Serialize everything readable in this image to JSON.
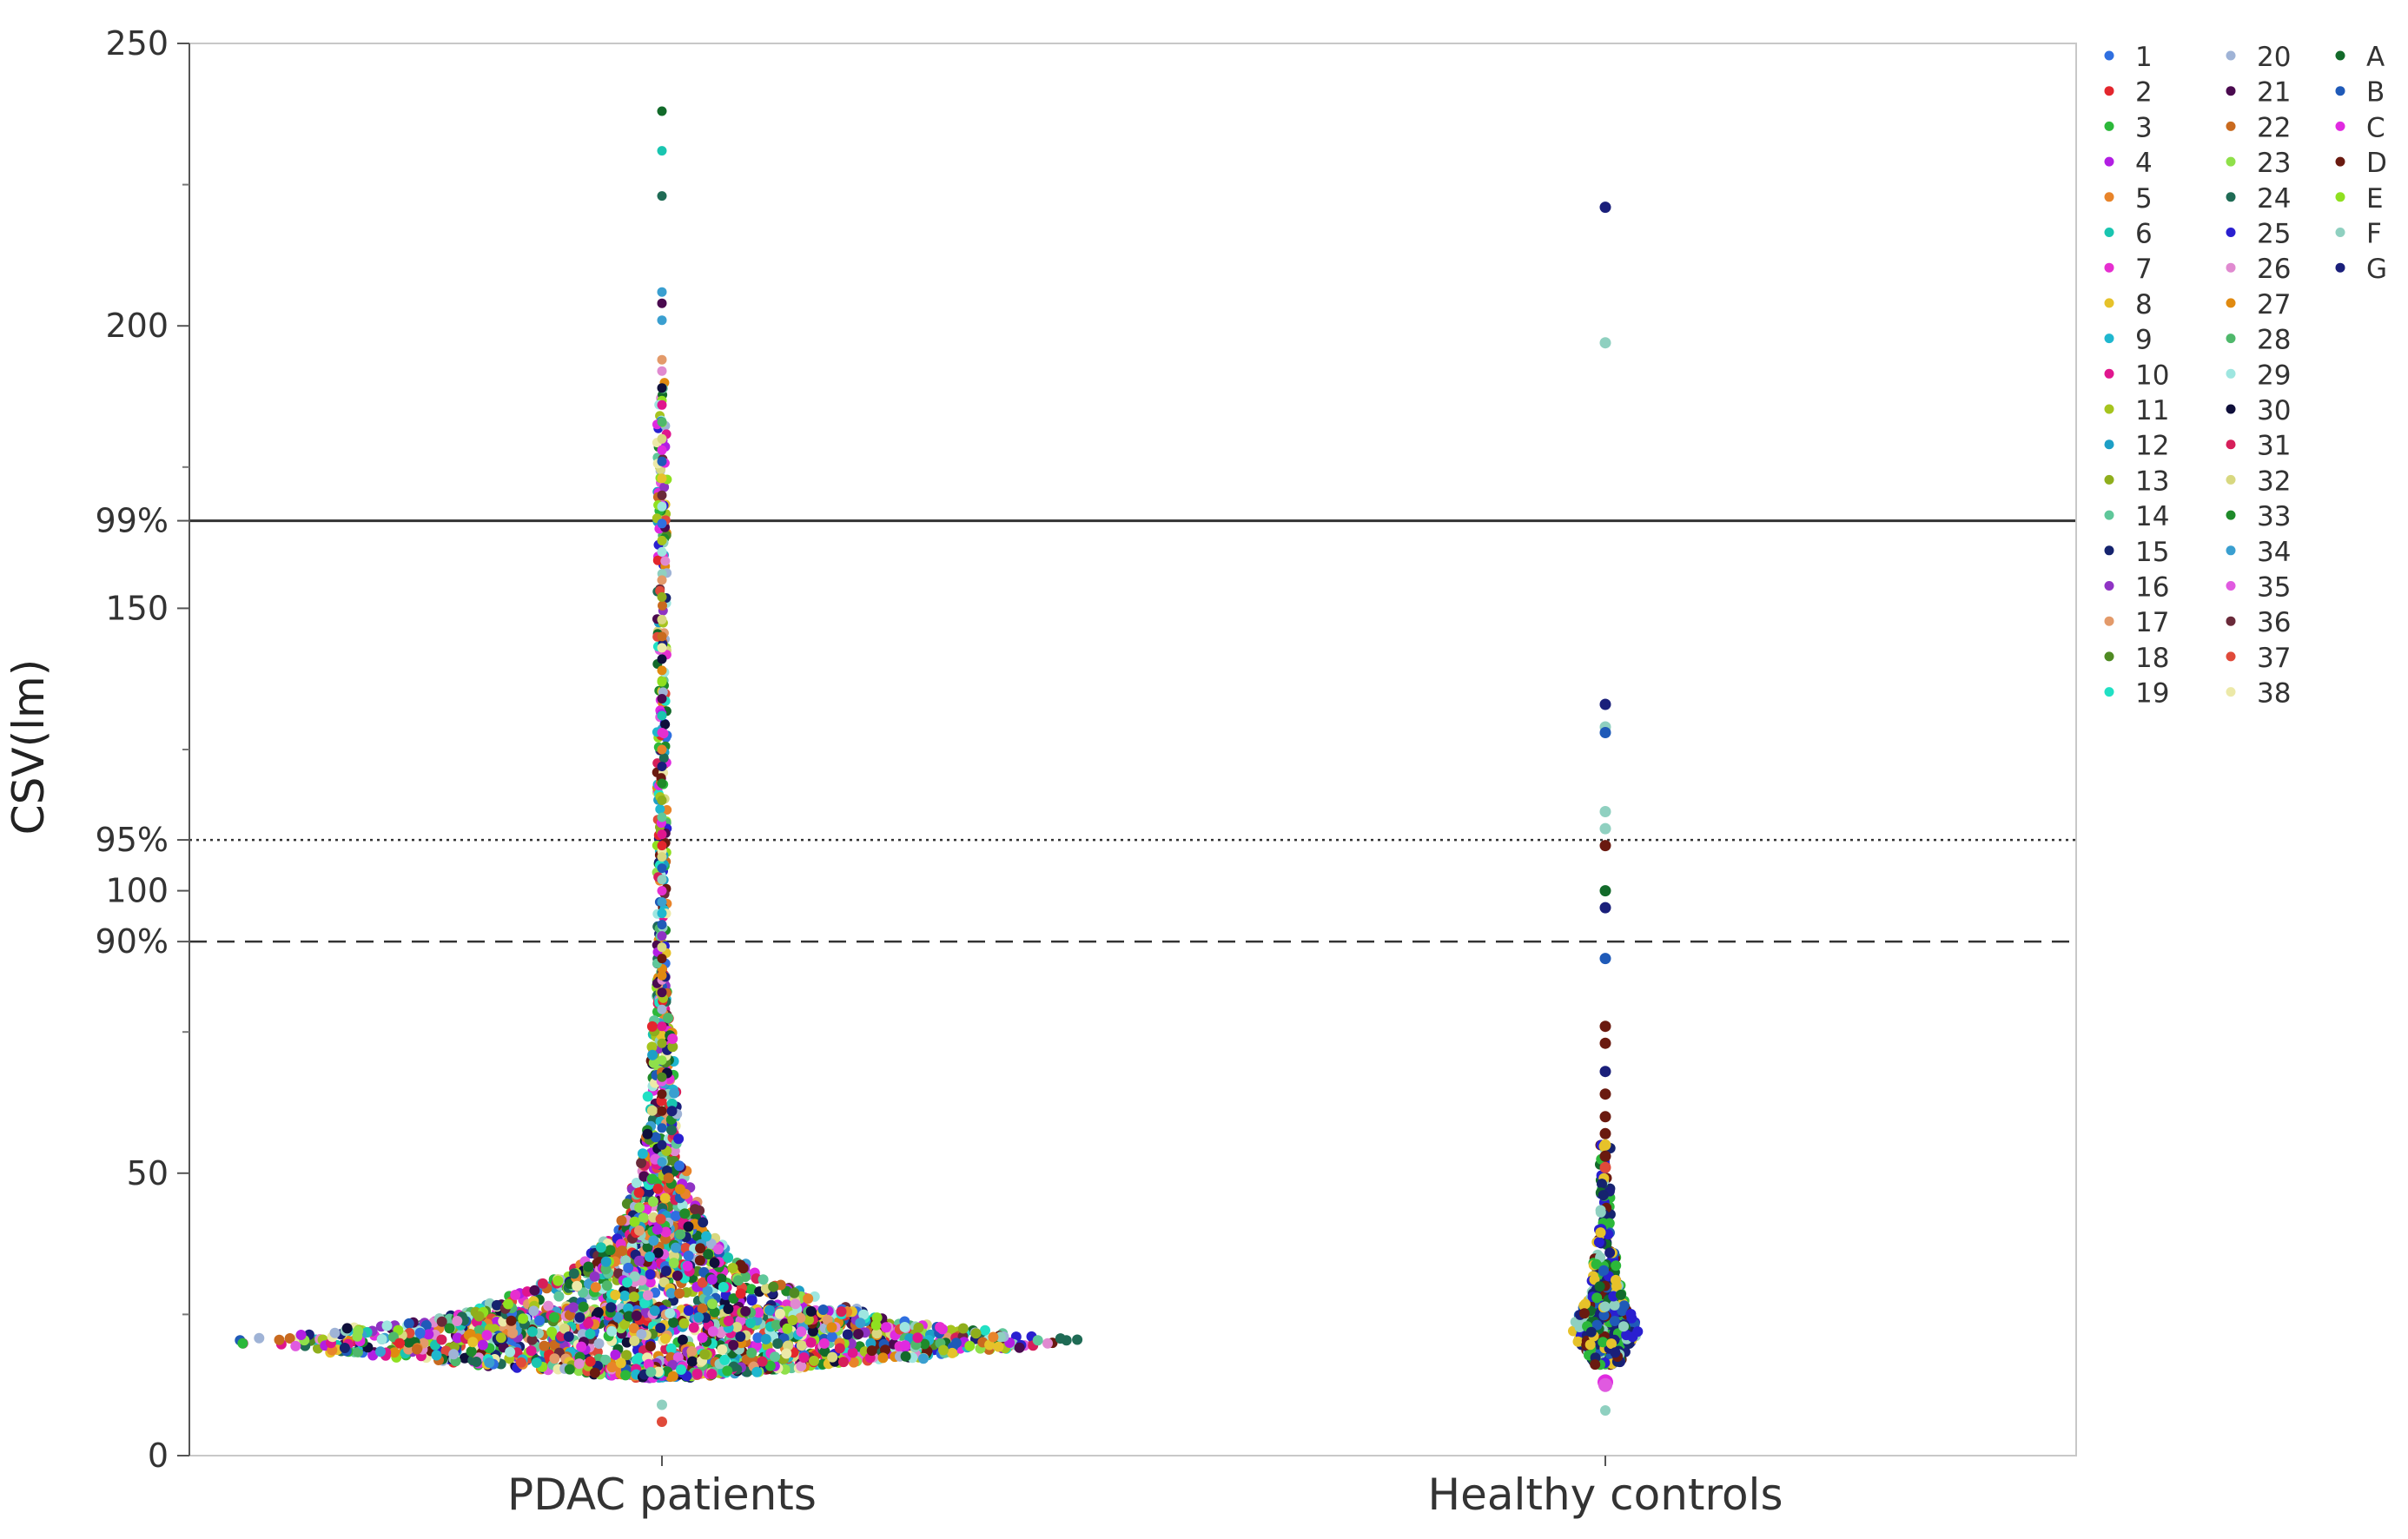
{
  "chart_data": {
    "type": "scatter",
    "title": "",
    "ylabel": "CSV(lm)",
    "xlabel": "",
    "categories": [
      "PDAC patients",
      "Healthy controls"
    ],
    "ylim": [
      0,
      250
    ],
    "yticks": [
      0,
      50,
      100,
      150,
      200,
      250
    ],
    "grid": false,
    "reference_lines": [
      {
        "label": "99%",
        "value": 165.5,
        "style": "solid"
      },
      {
        "label": "95%",
        "value": 109,
        "style": "dotted"
      },
      {
        "label": "90%",
        "value": 91,
        "style": "dashed"
      }
    ],
    "distribution": [
      {
        "category": "PDAC patients",
        "median": 20,
        "min": 6,
        "max": 238,
        "note_values_above_50": [
          238,
          231,
          223,
          206,
          204,
          201,
          194,
          192,
          189,
          186,
          183,
          180,
          178,
          176,
          173,
          170,
          168,
          165,
          162,
          160,
          155,
          152,
          148,
          145,
          143,
          141,
          139,
          137,
          134,
          131,
          128,
          125,
          122,
          119,
          116,
          113,
          110,
          108,
          106,
          104,
          102,
          100,
          98,
          96,
          94,
          92,
          90,
          88,
          85,
          82,
          79,
          76,
          73,
          70,
          67,
          64,
          61,
          58,
          55,
          52
        ]
      },
      {
        "category": "Healthy controls",
        "median": 22,
        "min": 8,
        "max": 221,
        "note_values_above_50": [
          221,
          197,
          133,
          129,
          128,
          114,
          111,
          108,
          100,
          97,
          88,
          76,
          73,
          68,
          64,
          60,
          57,
          55,
          53,
          51
        ]
      }
    ],
    "legend": {
      "position": "right",
      "entries": [
        {
          "name": "1",
          "color": "#2f6fe0"
        },
        {
          "name": "2",
          "color": "#e3262d"
        },
        {
          "name": "3",
          "color": "#2cb83a"
        },
        {
          "name": "4",
          "color": "#b21ee3"
        },
        {
          "name": "5",
          "color": "#e8842a"
        },
        {
          "name": "6",
          "color": "#19c5b0"
        },
        {
          "name": "7",
          "color": "#e62fd0"
        },
        {
          "name": "8",
          "color": "#e6c22a"
        },
        {
          "name": "9",
          "color": "#1fb7cf"
        },
        {
          "name": "10",
          "color": "#e0168e"
        },
        {
          "name": "11",
          "color": "#a6c41e"
        },
        {
          "name": "12",
          "color": "#1d9fc6"
        },
        {
          "name": "13",
          "color": "#8fae1c"
        },
        {
          "name": "14",
          "color": "#5fc79a"
        },
        {
          "name": "15",
          "color": "#15236e"
        },
        {
          "name": "16",
          "color": "#8f33c4"
        },
        {
          "name": "17",
          "color": "#e39a6a"
        },
        {
          "name": "18",
          "color": "#4f8a23"
        },
        {
          "name": "19",
          "color": "#21e0c4"
        },
        {
          "name": "20",
          "color": "#9fb3d6"
        },
        {
          "name": "21",
          "color": "#4a0a4f"
        },
        {
          "name": "22",
          "color": "#c96a1f"
        },
        {
          "name": "23",
          "color": "#8fe04a"
        },
        {
          "name": "24",
          "color": "#1f6b55"
        },
        {
          "name": "25",
          "color": "#2a1fd0"
        },
        {
          "name": "26",
          "color": "#e08ad0"
        },
        {
          "name": "27",
          "color": "#e08a10"
        },
        {
          "name": "28",
          "color": "#4fb86b"
        },
        {
          "name": "29",
          "color": "#9ee6e0"
        },
        {
          "name": "30",
          "color": "#0f0f3a"
        },
        {
          "name": "31",
          "color": "#d61f5a"
        },
        {
          "name": "32",
          "color": "#d8d880"
        },
        {
          "name": "33",
          "color": "#1f8a2a"
        },
        {
          "name": "34",
          "color": "#3a9fd0"
        },
        {
          "name": "35",
          "color": "#e05ae0"
        },
        {
          "name": "36",
          "color": "#6a2a3a"
        },
        {
          "name": "37",
          "color": "#e04a3a"
        },
        {
          "name": "38",
          "color": "#ece9a8"
        },
        {
          "name": "A",
          "color": "#126a2a"
        },
        {
          "name": "B",
          "color": "#1f5ab8"
        },
        {
          "name": "C",
          "color": "#e02ae0"
        },
        {
          "name": "D",
          "color": "#6a1a10"
        },
        {
          "name": "E",
          "color": "#8fe020"
        },
        {
          "name": "F",
          "color": "#8fd0c0"
        },
        {
          "name": "G",
          "color": "#1a1f7a"
        }
      ]
    }
  }
}
